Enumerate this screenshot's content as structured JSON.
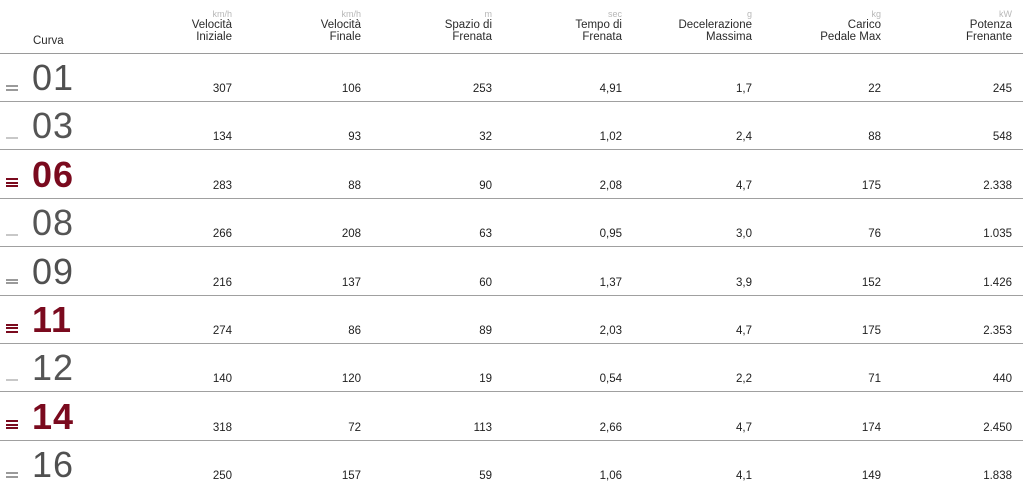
{
  "header": {
    "curva": "Curva",
    "columns": [
      {
        "unit": "km/h",
        "line1": "Velocità",
        "line2": "Iniziale"
      },
      {
        "unit": "km/h",
        "line1": "Velocità",
        "line2": "Finale"
      },
      {
        "unit": "m",
        "line1": "Spazio di",
        "line2": "Frenata"
      },
      {
        "unit": "sec",
        "line1": "Tempo di",
        "line2": "Frenata"
      },
      {
        "unit": "g",
        "line1": "Decelerazione",
        "line2": "Massima"
      },
      {
        "unit": "kg",
        "line1": "Carico",
        "line2": "Pedale Max"
      },
      {
        "unit": "kW",
        "line1": "Potenza",
        "line2": "Frenante"
      }
    ]
  },
  "rows": [
    {
      "curva": "01",
      "level": 2,
      "values": [
        "307",
        "106",
        "253",
        "4,91",
        "1,7",
        "22",
        "245"
      ]
    },
    {
      "curva": "03",
      "level": 1,
      "values": [
        "134",
        "93",
        "32",
        "1,02",
        "2,4",
        "88",
        "548"
      ]
    },
    {
      "curva": "06",
      "level": 3,
      "values": [
        "283",
        "88",
        "90",
        "2,08",
        "4,7",
        "175",
        "2.338"
      ]
    },
    {
      "curva": "08",
      "level": 1,
      "values": [
        "266",
        "208",
        "63",
        "0,95",
        "3,0",
        "76",
        "1.035"
      ]
    },
    {
      "curva": "09",
      "level": 2,
      "values": [
        "216",
        "137",
        "60",
        "1,37",
        "3,9",
        "152",
        "1.426"
      ]
    },
    {
      "curva": "11",
      "level": 3,
      "values": [
        "274",
        "86",
        "89",
        "2,03",
        "4,7",
        "175",
        "2.353"
      ]
    },
    {
      "curva": "12",
      "level": 1,
      "values": [
        "140",
        "120",
        "19",
        "0,54",
        "2,2",
        "71",
        "440"
      ]
    },
    {
      "curva": "14",
      "level": 3,
      "values": [
        "318",
        "72",
        "113",
        "2,66",
        "4,7",
        "174",
        "2.450"
      ]
    },
    {
      "curva": "16",
      "level": 2,
      "values": [
        "250",
        "157",
        "59",
        "1,06",
        "4,1",
        "149",
        "1.838"
      ]
    }
  ],
  "colors": {
    "heavy": "#7a0a1e",
    "medium": "#9a9a9a",
    "light": "#c8c8c8"
  }
}
